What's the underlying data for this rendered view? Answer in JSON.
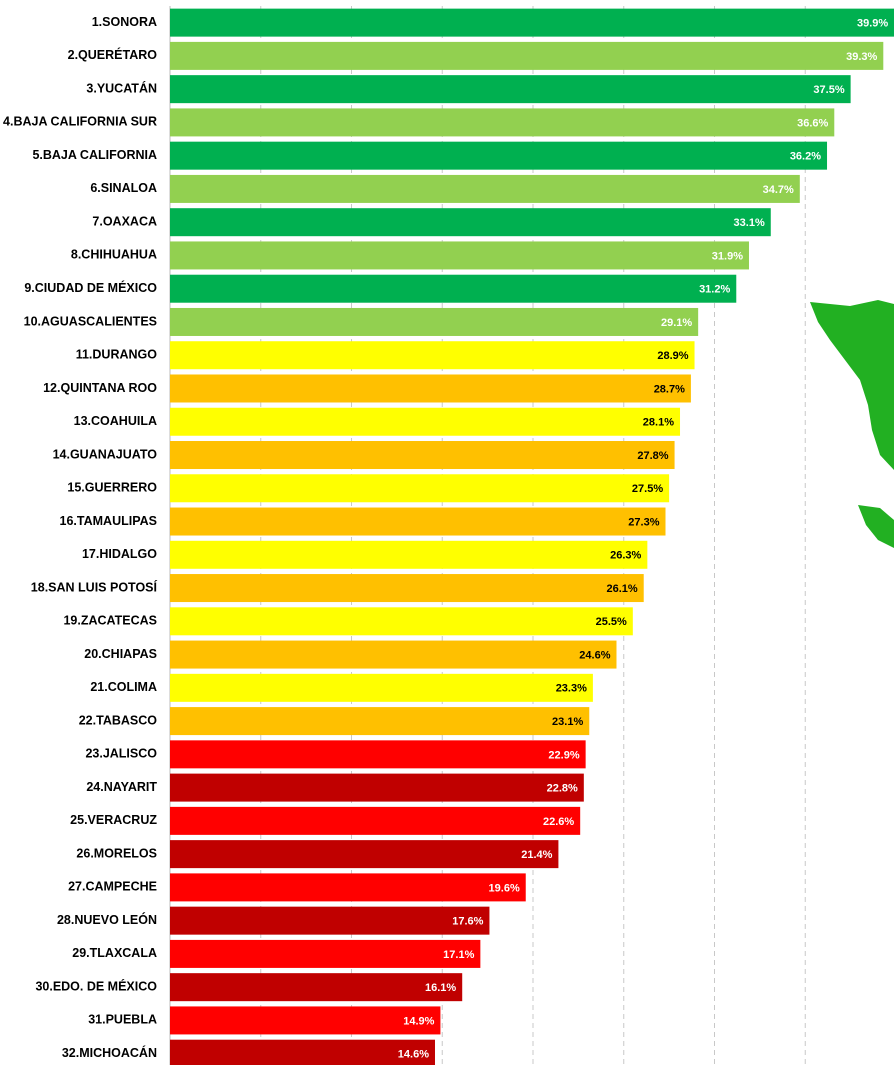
{
  "chart_data": {
    "type": "barh",
    "categories": [
      "1.SONORA",
      "2.QUERÉTARO",
      "3.YUCATÁN",
      "4.BAJA CALIFORNIA SUR",
      "5.BAJA CALIFORNIA",
      "6.SINALOA",
      "7.OAXACA",
      "8.CHIHUAHUA",
      "9.CIUDAD DE MÉXICO",
      "10.AGUASCALIENTES",
      "11.DURANGO",
      "12.QUINTANA ROO",
      "13.COAHUILA",
      "14.GUANAJUATO",
      "15.GUERRERO",
      "16.TAMAULIPAS",
      "17.HIDALGO",
      "18.SAN LUIS POTOSÍ",
      "19.ZACATECAS",
      "20.CHIAPAS",
      "21.COLIMA",
      "22.TABASCO",
      "23.JALISCO",
      "24.NAYARIT",
      "25.VERACRUZ",
      "26.MORELOS",
      "27.CAMPECHE",
      "28.NUEVO LEÓN",
      "29.TLAXCALA",
      "30.EDO. DE MÉXICO",
      "31.PUEBLA",
      "32.MICHOACÁN"
    ],
    "values": [
      39.9,
      39.3,
      37.5,
      36.6,
      36.2,
      34.7,
      33.1,
      31.9,
      31.2,
      29.1,
      28.9,
      28.7,
      28.1,
      27.8,
      27.5,
      27.3,
      26.3,
      26.1,
      25.5,
      24.6,
      23.3,
      23.1,
      22.9,
      22.8,
      22.6,
      21.4,
      19.6,
      17.6,
      17.1,
      16.1,
      14.9,
      14.6
    ],
    "value_labels": [
      "39.9%",
      "39.3%",
      "37.5%",
      "36.6%",
      "36.2%",
      "34.7%",
      "33.1%",
      "31.9%",
      "31.2%",
      "29.1%",
      "28.9%",
      "28.7%",
      "28.1%",
      "27.8%",
      "27.5%",
      "27.3%",
      "26.3%",
      "26.1%",
      "25.5%",
      "24.6%",
      "23.3%",
      "23.1%",
      "22.9%",
      "22.8%",
      "22.6%",
      "21.4%",
      "19.6%",
      "17.6%",
      "17.1%",
      "16.1%",
      "14.9%",
      "14.6%"
    ],
    "colors": [
      "#00b050",
      "#92d050",
      "#00b050",
      "#92d050",
      "#00b050",
      "#92d050",
      "#00b050",
      "#92d050",
      "#00b050",
      "#92d050",
      "#ffff00",
      "#ffc000",
      "#ffff00",
      "#ffc000",
      "#ffff00",
      "#ffc000",
      "#ffff00",
      "#ffc000",
      "#ffff00",
      "#ffc000",
      "#ffff00",
      "#ffc000",
      "#ff0000",
      "#c00000",
      "#ff0000",
      "#c00000",
      "#ff0000",
      "#c00000",
      "#ff0000",
      "#c00000",
      "#ff0000",
      "#c00000"
    ],
    "xlim": [
      0,
      40
    ],
    "xticks": [
      5,
      10,
      15,
      20,
      25,
      30,
      35
    ],
    "grid": true,
    "tick_labels": false
  }
}
